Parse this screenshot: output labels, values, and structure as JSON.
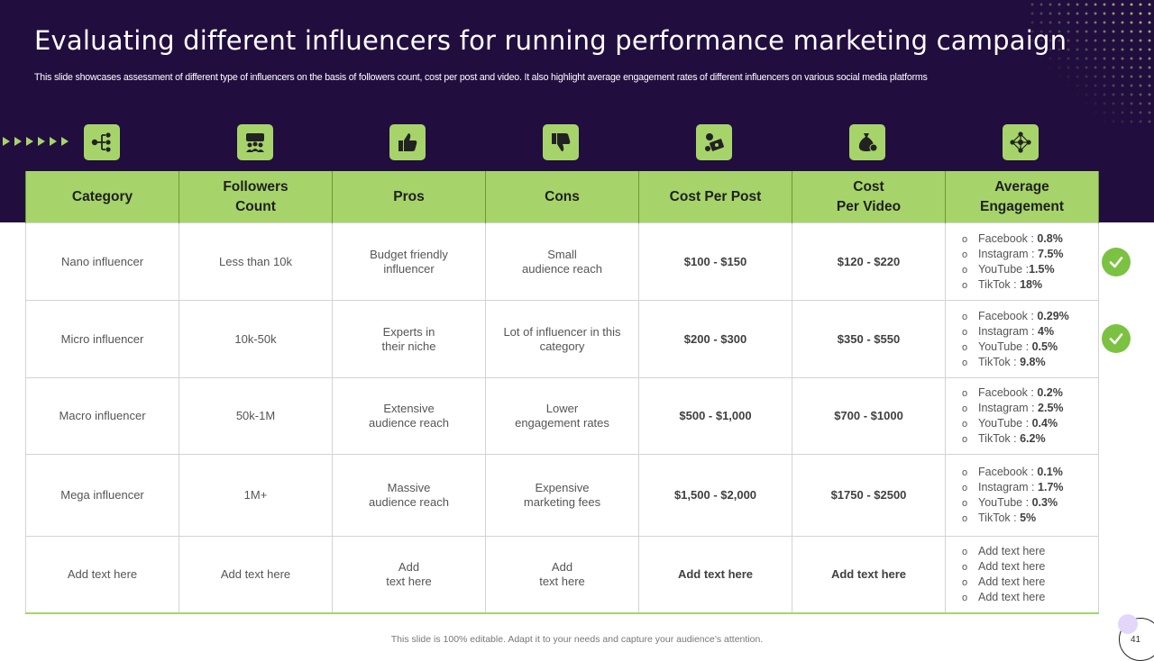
{
  "slide": {
    "title": "Evaluating different influencers for running performance marketing campaign",
    "subtitle": "This slide showcases assessment of different type  of influencers on the basis of followers count, cost per post and video. It also highlight average engagement rates of different influencers on various social media platforms",
    "footer_note": "This slide is 100% editable. Adapt it to your needs and capture your audience’s attention.",
    "page_number": "41"
  },
  "colors": {
    "banner": "#220d3f",
    "accent": "#a6d46b",
    "check": "#7cc242"
  },
  "header_icons": [
    "hierarchy-icon",
    "audience-icon",
    "thumbs-up-icon",
    "thumbs-down-icon",
    "money-cost-icon",
    "money-bag-icon",
    "network-icon"
  ],
  "table": {
    "headers": {
      "category": "Category",
      "followers_1": "Followers",
      "followers_2": "Count",
      "pros": "Pros",
      "cons": "Cons",
      "cost_post": "Cost Per Post",
      "cost_video_1": "Cost",
      "cost_video_2": "Per Video",
      "engagement_1": "Average",
      "engagement_2": "Engagement"
    },
    "rows": [
      {
        "category": "Nano influencer",
        "followers": "Less than 10k",
        "pros": [
          "Budget friendly",
          "influencer"
        ],
        "cons": [
          "Small",
          "audience reach"
        ],
        "cost_post": "$100 - $150",
        "cost_video": "$120 - $220",
        "engagement": [
          {
            "platform": "Facebook :",
            "value": "0.8%"
          },
          {
            "platform": "Instagram  :",
            "value": "7.5%"
          },
          {
            "platform": "YouTube :",
            "value": "1.5%"
          },
          {
            "platform": "TikTok  :",
            "value": "18%"
          }
        ]
      },
      {
        "category": "Micro influencer",
        "followers": "10k-50k",
        "pros": [
          "Experts in",
          "their niche"
        ],
        "cons": [
          "Lot of influencer  in this",
          "category"
        ],
        "cost_post": "$200 - $300",
        "cost_video": "$350 - $550",
        "engagement": [
          {
            "platform": "Facebook :",
            "value": "0.29%"
          },
          {
            "platform": "Instagram  :",
            "value": "4%"
          },
          {
            "platform": "YouTube  :",
            "value": "0.5%"
          },
          {
            "platform": "TikTok  :",
            "value": "9.8%"
          }
        ]
      },
      {
        "category": "Macro influencer",
        "followers": "50k-1M",
        "pros": [
          "Extensive",
          "audience reach"
        ],
        "cons": [
          "Lower",
          "engagement  rates"
        ],
        "cost_post": "$500 - $1,000",
        "cost_video": "$700 - $1000",
        "engagement": [
          {
            "platform": "Facebook :",
            "value": "0.2%"
          },
          {
            "platform": "Instagram  :",
            "value": "2.5%"
          },
          {
            "platform": "YouTube  :",
            "value": "0.4%"
          },
          {
            "platform": "TikTok  :",
            "value": "6.2%"
          }
        ]
      },
      {
        "category": "Mega influencer",
        "followers": "1M+",
        "pros": [
          "Massive",
          "audience reach"
        ],
        "cons": [
          "Expensive",
          "marketing fees"
        ],
        "cost_post": "$1,500 - $2,000",
        "cost_video": "$1750 - $2500",
        "engagement": [
          {
            "platform": "Facebook :",
            "value": "0.1%"
          },
          {
            "platform": "Instagram  :",
            "value": "1.7%"
          },
          {
            "platform": "YouTube  :",
            "value": "0.3%"
          },
          {
            "platform": "TikTok  :",
            "value": "5%"
          }
        ]
      },
      {
        "category": "Add text here",
        "followers": "Add text here",
        "pros": [
          "Add",
          "text here"
        ],
        "cons": [
          "Add",
          "text here"
        ],
        "cost_post": "Add text here",
        "cost_video": "Add text here",
        "engagement": [
          {
            "platform": "Add text here",
            "value": ""
          },
          {
            "platform": "Add text here",
            "value": ""
          },
          {
            "platform": "Add text here",
            "value": ""
          },
          {
            "platform": "Add text here",
            "value": ""
          }
        ]
      }
    ],
    "bullet": "o",
    "checked_rows": [
      "Nano influencer",
      "Micro influencer"
    ]
  }
}
